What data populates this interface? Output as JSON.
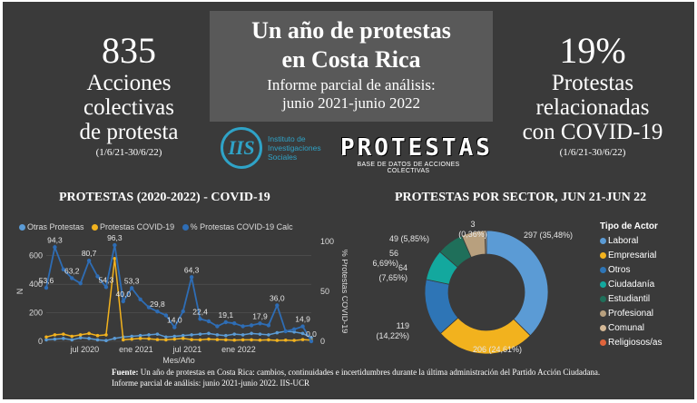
{
  "stats": {
    "left": {
      "value": "835",
      "label_lines": [
        "Acciones",
        "colectivas",
        "de protesta"
      ],
      "date": "(1/6/21-30/6/22)"
    },
    "right": {
      "value": "19%",
      "label_lines": [
        "Protestas",
        "relacionadas",
        "con COVID-19"
      ],
      "date": "(1/6/21-30/6/22)"
    }
  },
  "title": {
    "line1": "Un año de protestas",
    "line2": "en Costa Rica",
    "sub1": "Informe parcial de análisis:",
    "sub2": "junio 2021-junio 2022"
  },
  "logos": {
    "iis_mark": "IIS",
    "iis_lines": [
      "Instituto de",
      "Investigaciones",
      "Sociales"
    ],
    "protestas_word": "PROTESTAS",
    "protestas_sub": "BASE DE DATOS DE ACCIONES COLECTIVAS"
  },
  "sections": {
    "line_title": "PROTESTAS (2020-2022) - COVID-19",
    "pie_title": "PROTESTAS POR SECTOR, JUN 21-JUN 22"
  },
  "colors": {
    "otras": "#5b9bd5",
    "covid": "#f2b21e",
    "pct": "#2e6db5",
    "background": "#3a3a3a"
  },
  "footer": {
    "label": "Fuente:",
    "text": " Un año de protestas en Costa Rica: cambios, continuidades e incertidumbres durante la última administración del Partido Acción Ciudadana. Informe parcial de análisis: junio 2021-junio 2022. IIS-UCR"
  },
  "chart_data": [
    {
      "type": "line",
      "title": "PROTESTAS (2020-2022) - COVID-19",
      "xlabel": "Mes/Año",
      "ylabel": "N",
      "y2label": "% Protestas COVID-19",
      "ylim": [
        0,
        700
      ],
      "yticks": [
        "0",
        "200",
        "400",
        "600"
      ],
      "y2lim": [
        0,
        100
      ],
      "y2ticks": [
        "0",
        "50",
        "100"
      ],
      "x_tick_labels": [
        "jul 2020",
        "ene 2021",
        "jul 2021",
        "ene 2022"
      ],
      "x_tick_index": [
        4.5,
        10.5,
        16.5,
        22.5
      ],
      "legend": [
        "Otras Protestas",
        "Protestas COVID-19",
        "% Protestas COVID-19 Calc"
      ],
      "months": 32,
      "series": [
        {
          "name": "Otras Protestas",
          "axis": "left",
          "values": [
            10,
            15,
            20,
            10,
            25,
            20,
            10,
            5,
            20,
            30,
            35,
            40,
            45,
            50,
            30,
            35,
            40,
            45,
            50,
            55,
            45,
            40,
            50,
            45,
            55,
            50,
            45,
            60,
            70,
            65,
            55,
            25
          ]
        },
        {
          "name": "Protestas COVID-19",
          "axis": "left",
          "values": [
            30,
            45,
            50,
            35,
            45,
            55,
            40,
            45,
            580,
            10,
            15,
            20,
            18,
            12,
            10,
            15,
            20,
            12,
            10,
            15,
            12,
            10,
            8,
            10,
            10,
            8,
            10,
            6,
            8,
            6,
            12,
            8
          ]
        },
        {
          "name": "% Protestas COVID-19 Calc",
          "axis": "right",
          "values": [
            53.6,
            94.3,
            72,
            63.2,
            58,
            80.7,
            65,
            54.3,
            96.3,
            40.0,
            53.3,
            42,
            34,
            29.8,
            26,
            14.0,
            30,
            64.3,
            22.4,
            20,
            15,
            19.1,
            18,
            15,
            16,
            17.9,
            16,
            36.0,
            10,
            12,
            14.9,
            0.0
          ],
          "labels": {
            "0": "53,6",
            "1": "94,3",
            "3": "63,2",
            "5": "80,7",
            "7": "54,3",
            "8": "96,3",
            "9": "40,0",
            "10": "53,3",
            "13": "29,8",
            "15": "14,0",
            "17": "64,3",
            "18": "22,4",
            "21": "19,1",
            "25": "17,9",
            "27": "36,0",
            "30": "14,9",
            "31": "0,0"
          }
        }
      ]
    },
    {
      "type": "pie",
      "title": "PROTESTAS POR SECTOR, JUN 21-JUN 22",
      "legend_title": "Tipo de Actor",
      "slices": [
        {
          "name": "Laboral",
          "value": 297,
          "label": "297 (35,48%)",
          "color": "#5b9bd5"
        },
        {
          "name": "Empresarial",
          "value": 206,
          "label": "206 (24,61%)",
          "color": "#f2b21e"
        },
        {
          "name": "Otros",
          "value": 119,
          "label": "119 (14,22%)",
          "color": "#2e75b6"
        },
        {
          "name": "Ciudadanía",
          "value": 64,
          "label": "64 (7,65%)",
          "color": "#13a89e"
        },
        {
          "name": "Estudiantil",
          "value": 56,
          "label": "56 (6,69%)",
          "color": "#1f6f5a"
        },
        {
          "name": "Profesional",
          "value": 49,
          "label": "49 (5,85%)",
          "color": "#b8a07e"
        },
        {
          "name": "Comunal",
          "value": 3,
          "label": "3 (0,36%)",
          "color": "#d4b896"
        },
        {
          "name": "Religiosos/as",
          "value": 0,
          "label": "",
          "color": "#e0643c"
        }
      ]
    }
  ]
}
